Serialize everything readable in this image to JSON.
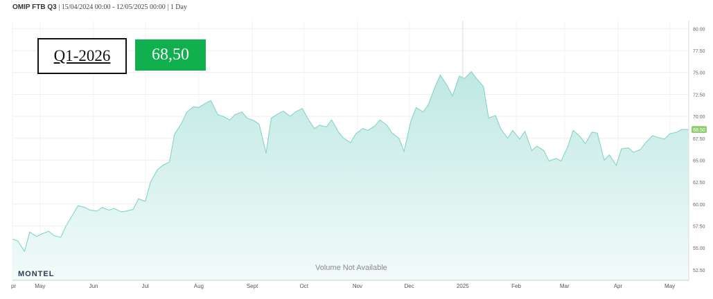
{
  "header": {
    "ticker": "OMIP FTB Q3",
    "range": " | 15/04/2024 00:00 - 12/05/2025 00:00 | 1 Day"
  },
  "overlay": {
    "contract": "Q1-2026",
    "price": "68,50"
  },
  "logo": "MONTEL",
  "volume_note": "Volume Not Available",
  "colors": {
    "area_line": "#86d3c9",
    "area_fill_top": "#bfe8e2",
    "area_fill_bottom": "#f2fbfa",
    "price_badge": "#11b04f",
    "last_price_marker": "#8fce70"
  },
  "chart_data": {
    "type": "area",
    "title": "",
    "xlabel": "",
    "ylabel": "",
    "ylim": [
      51.3,
      80.9
    ],
    "y_ticks": [
      "80.00",
      "77.50",
      "75.00",
      "72.50",
      "70.00",
      "67.50",
      "65.00",
      "62.50",
      "60.00",
      "57.50",
      "55.00",
      "52.50"
    ],
    "y_tick_values": [
      80,
      77.5,
      75,
      72.5,
      70,
      67.5,
      65,
      62.5,
      60,
      57.5,
      55,
      52.5
    ],
    "x_ticks": [
      {
        "label": "pr",
        "date": "2024-04-15"
      },
      {
        "label": "May",
        "date": "2024-05-01"
      },
      {
        "label": "Jun",
        "date": "2024-06-01"
      },
      {
        "label": "Jul",
        "date": "2024-07-01"
      },
      {
        "label": "Aug",
        "date": "2024-08-01"
      },
      {
        "label": "Sept",
        "date": "2024-09-01"
      },
      {
        "label": "Oct",
        "date": "2024-10-01"
      },
      {
        "label": "Nov",
        "date": "2024-11-01"
      },
      {
        "label": "Dec",
        "date": "2024-12-01"
      },
      {
        "label": "2025",
        "date": "2025-01-01"
      },
      {
        "label": "Feb",
        "date": "2025-02-01"
      },
      {
        "label": "Mar",
        "date": "2025-03-01"
      },
      {
        "label": "Apr",
        "date": "2025-04-01"
      },
      {
        "label": "May",
        "date": "2025-05-01"
      }
    ],
    "last_value_label": "68.50",
    "series": [
      {
        "x": [
          "2024-04-15",
          "2024-04-18",
          "2024-04-22",
          "2024-04-25",
          "2024-04-29",
          "2024-05-02",
          "2024-05-06",
          "2024-05-09",
          "2024-05-13",
          "2024-05-16",
          "2024-05-20",
          "2024-05-23",
          "2024-05-27",
          "2024-05-30",
          "2024-06-03",
          "2024-06-06",
          "2024-06-10",
          "2024-06-13",
          "2024-06-17",
          "2024-06-20",
          "2024-06-24",
          "2024-06-27",
          "2024-07-01",
          "2024-07-04",
          "2024-07-08",
          "2024-07-11",
          "2024-07-15",
          "2024-07-18",
          "2024-07-22",
          "2024-07-25",
          "2024-07-29",
          "2024-08-01",
          "2024-08-05",
          "2024-08-08",
          "2024-08-12",
          "2024-08-15",
          "2024-08-19",
          "2024-08-22",
          "2024-08-26",
          "2024-08-29",
          "2024-09-02",
          "2024-09-05",
          "2024-09-09",
          "2024-09-12",
          "2024-09-16",
          "2024-09-19",
          "2024-09-23",
          "2024-09-26",
          "2024-09-30",
          "2024-10-03",
          "2024-10-07",
          "2024-10-10",
          "2024-10-14",
          "2024-10-17",
          "2024-10-21",
          "2024-10-24",
          "2024-10-28",
          "2024-10-31",
          "2024-11-04",
          "2024-11-07",
          "2024-11-11",
          "2024-11-14",
          "2024-11-18",
          "2024-11-21",
          "2024-11-25",
          "2024-11-28",
          "2024-12-02",
          "2024-12-05",
          "2024-12-09",
          "2024-12-12",
          "2024-12-16",
          "2024-12-19",
          "2024-12-23",
          "2024-12-26",
          "2024-12-30",
          "2025-01-02",
          "2025-01-06",
          "2025-01-09",
          "2025-01-13",
          "2025-01-16",
          "2025-01-20",
          "2025-01-23",
          "2025-01-27",
          "2025-01-30",
          "2025-02-03",
          "2025-02-06",
          "2025-02-10",
          "2025-02-13",
          "2025-02-17",
          "2025-02-20",
          "2025-02-24",
          "2025-02-27",
          "2025-03-03",
          "2025-03-06",
          "2025-03-10",
          "2025-03-13",
          "2025-03-17",
          "2025-03-20",
          "2025-03-24",
          "2025-03-27",
          "2025-03-31",
          "2025-04-03",
          "2025-04-07",
          "2025-04-10",
          "2025-04-14",
          "2025-04-17",
          "2025-04-21",
          "2025-04-24",
          "2025-04-28",
          "2025-05-01",
          "2025-05-05",
          "2025-05-08",
          "2025-05-12"
        ],
        "y": [
          56.0,
          55.8,
          54.6,
          56.8,
          56.3,
          56.6,
          56.9,
          56.4,
          56.2,
          57.5,
          58.8,
          59.8,
          59.6,
          59.3,
          59.2,
          59.6,
          59.3,
          59.5,
          59.1,
          59.2,
          59.4,
          60.6,
          60.3,
          62.5,
          63.9,
          64.4,
          64.8,
          68.0,
          69.2,
          70.5,
          71.1,
          71.0,
          71.5,
          71.8,
          70.2,
          70.0,
          69.6,
          70.2,
          70.5,
          69.8,
          69.5,
          69.1,
          65.8,
          69.8,
          70.3,
          70.6,
          70.0,
          70.5,
          70.9,
          69.8,
          68.6,
          69.0,
          68.8,
          69.6,
          68.2,
          67.5,
          67.0,
          68.0,
          68.6,
          68.4,
          68.9,
          69.6,
          69.0,
          68.1,
          67.5,
          66.0,
          69.5,
          71.0,
          70.5,
          71.3,
          73.4,
          74.7,
          73.5,
          72.3,
          74.6,
          74.3,
          75.1,
          74.3,
          73.4,
          69.8,
          70.1,
          68.6,
          67.5,
          68.4,
          67.4,
          68.3,
          66.1,
          66.6,
          66.1,
          64.9,
          65.2,
          64.9,
          66.6,
          68.4,
          67.7,
          66.9,
          68.2,
          68.1,
          65.0,
          65.6,
          64.4,
          66.3,
          66.4,
          65.9,
          66.2,
          67.0,
          67.8,
          67.6,
          67.4,
          68.0,
          68.2,
          68.5,
          68.5
        ]
      }
    ]
  }
}
